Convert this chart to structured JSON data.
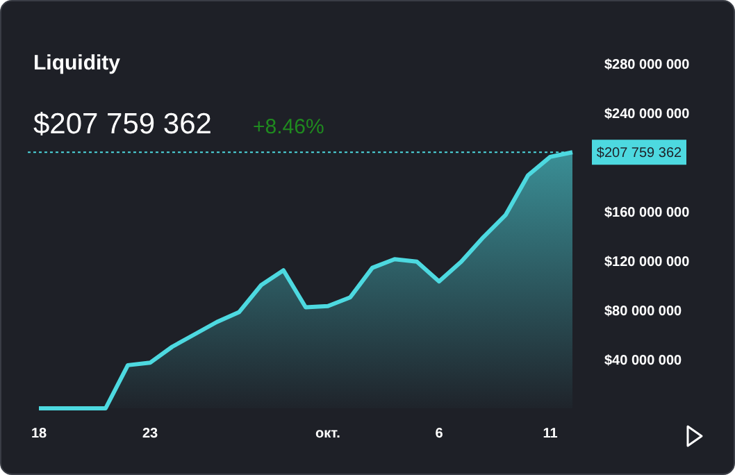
{
  "chart_data": {
    "type": "area",
    "title": "Liquidity",
    "subtitle": "$207 759 362",
    "annotations": [
      "+8.46%"
    ],
    "x": [
      "--09-18",
      "--09-19",
      "--09-20",
      "--09-21",
      "--09-22",
      "--09-23",
      "--09-24",
      "--09-25",
      "--09-26",
      "--09-27",
      "--09-28",
      "--09-29",
      "--09-30",
      "--10-01",
      "--10-02",
      "--10-03",
      "--10-04",
      "--10-05",
      "--10-06",
      "--10-07",
      "--10-08",
      "--10-09",
      "--10-10",
      "--10-11",
      "--10-12"
    ],
    "series": [
      {
        "color": "#4dd9e0",
        "values": [
          0,
          0,
          0,
          0,
          35000000,
          37000000,
          50000000,
          60000000,
          70000000,
          78000000,
          100000000,
          112000000,
          82000000,
          83000000,
          90000000,
          114000000,
          121000000,
          119000000,
          103000000,
          119000000,
          139000000,
          157000000,
          189000000,
          204000000,
          207759362
        ]
      }
    ],
    "xlim": [
      "--09-18",
      "--10-12"
    ],
    "xticks": [
      {
        "value": "--09-18",
        "label": "18"
      },
      {
        "value": "--09-23",
        "label": "23"
      },
      {
        "value": "--10-01",
        "label": "окт."
      },
      {
        "value": "--10-06",
        "label": "6"
      },
      {
        "value": "--10-11",
        "label": "11"
      }
    ],
    "ylim": [
      0,
      280000000
    ],
    "yticks": [
      {
        "value": 40000000,
        "label": "$40 000 000"
      },
      {
        "value": 80000000,
        "label": "$80 000 000"
      },
      {
        "value": 120000000,
        "label": "$120 000 000"
      },
      {
        "value": 160000000,
        "label": "$160 000 000"
      },
      {
        "value": 240000000,
        "label": "$240 000 000"
      },
      {
        "value": 280000000,
        "label": "$280 000 000"
      }
    ],
    "ref_lines": [
      {
        "axis": "y",
        "value": 207759362,
        "label": "$207 759 362",
        "color": "#4dd9e0",
        "line_style": "dotted"
      }
    ],
    "grid": false
  }
}
